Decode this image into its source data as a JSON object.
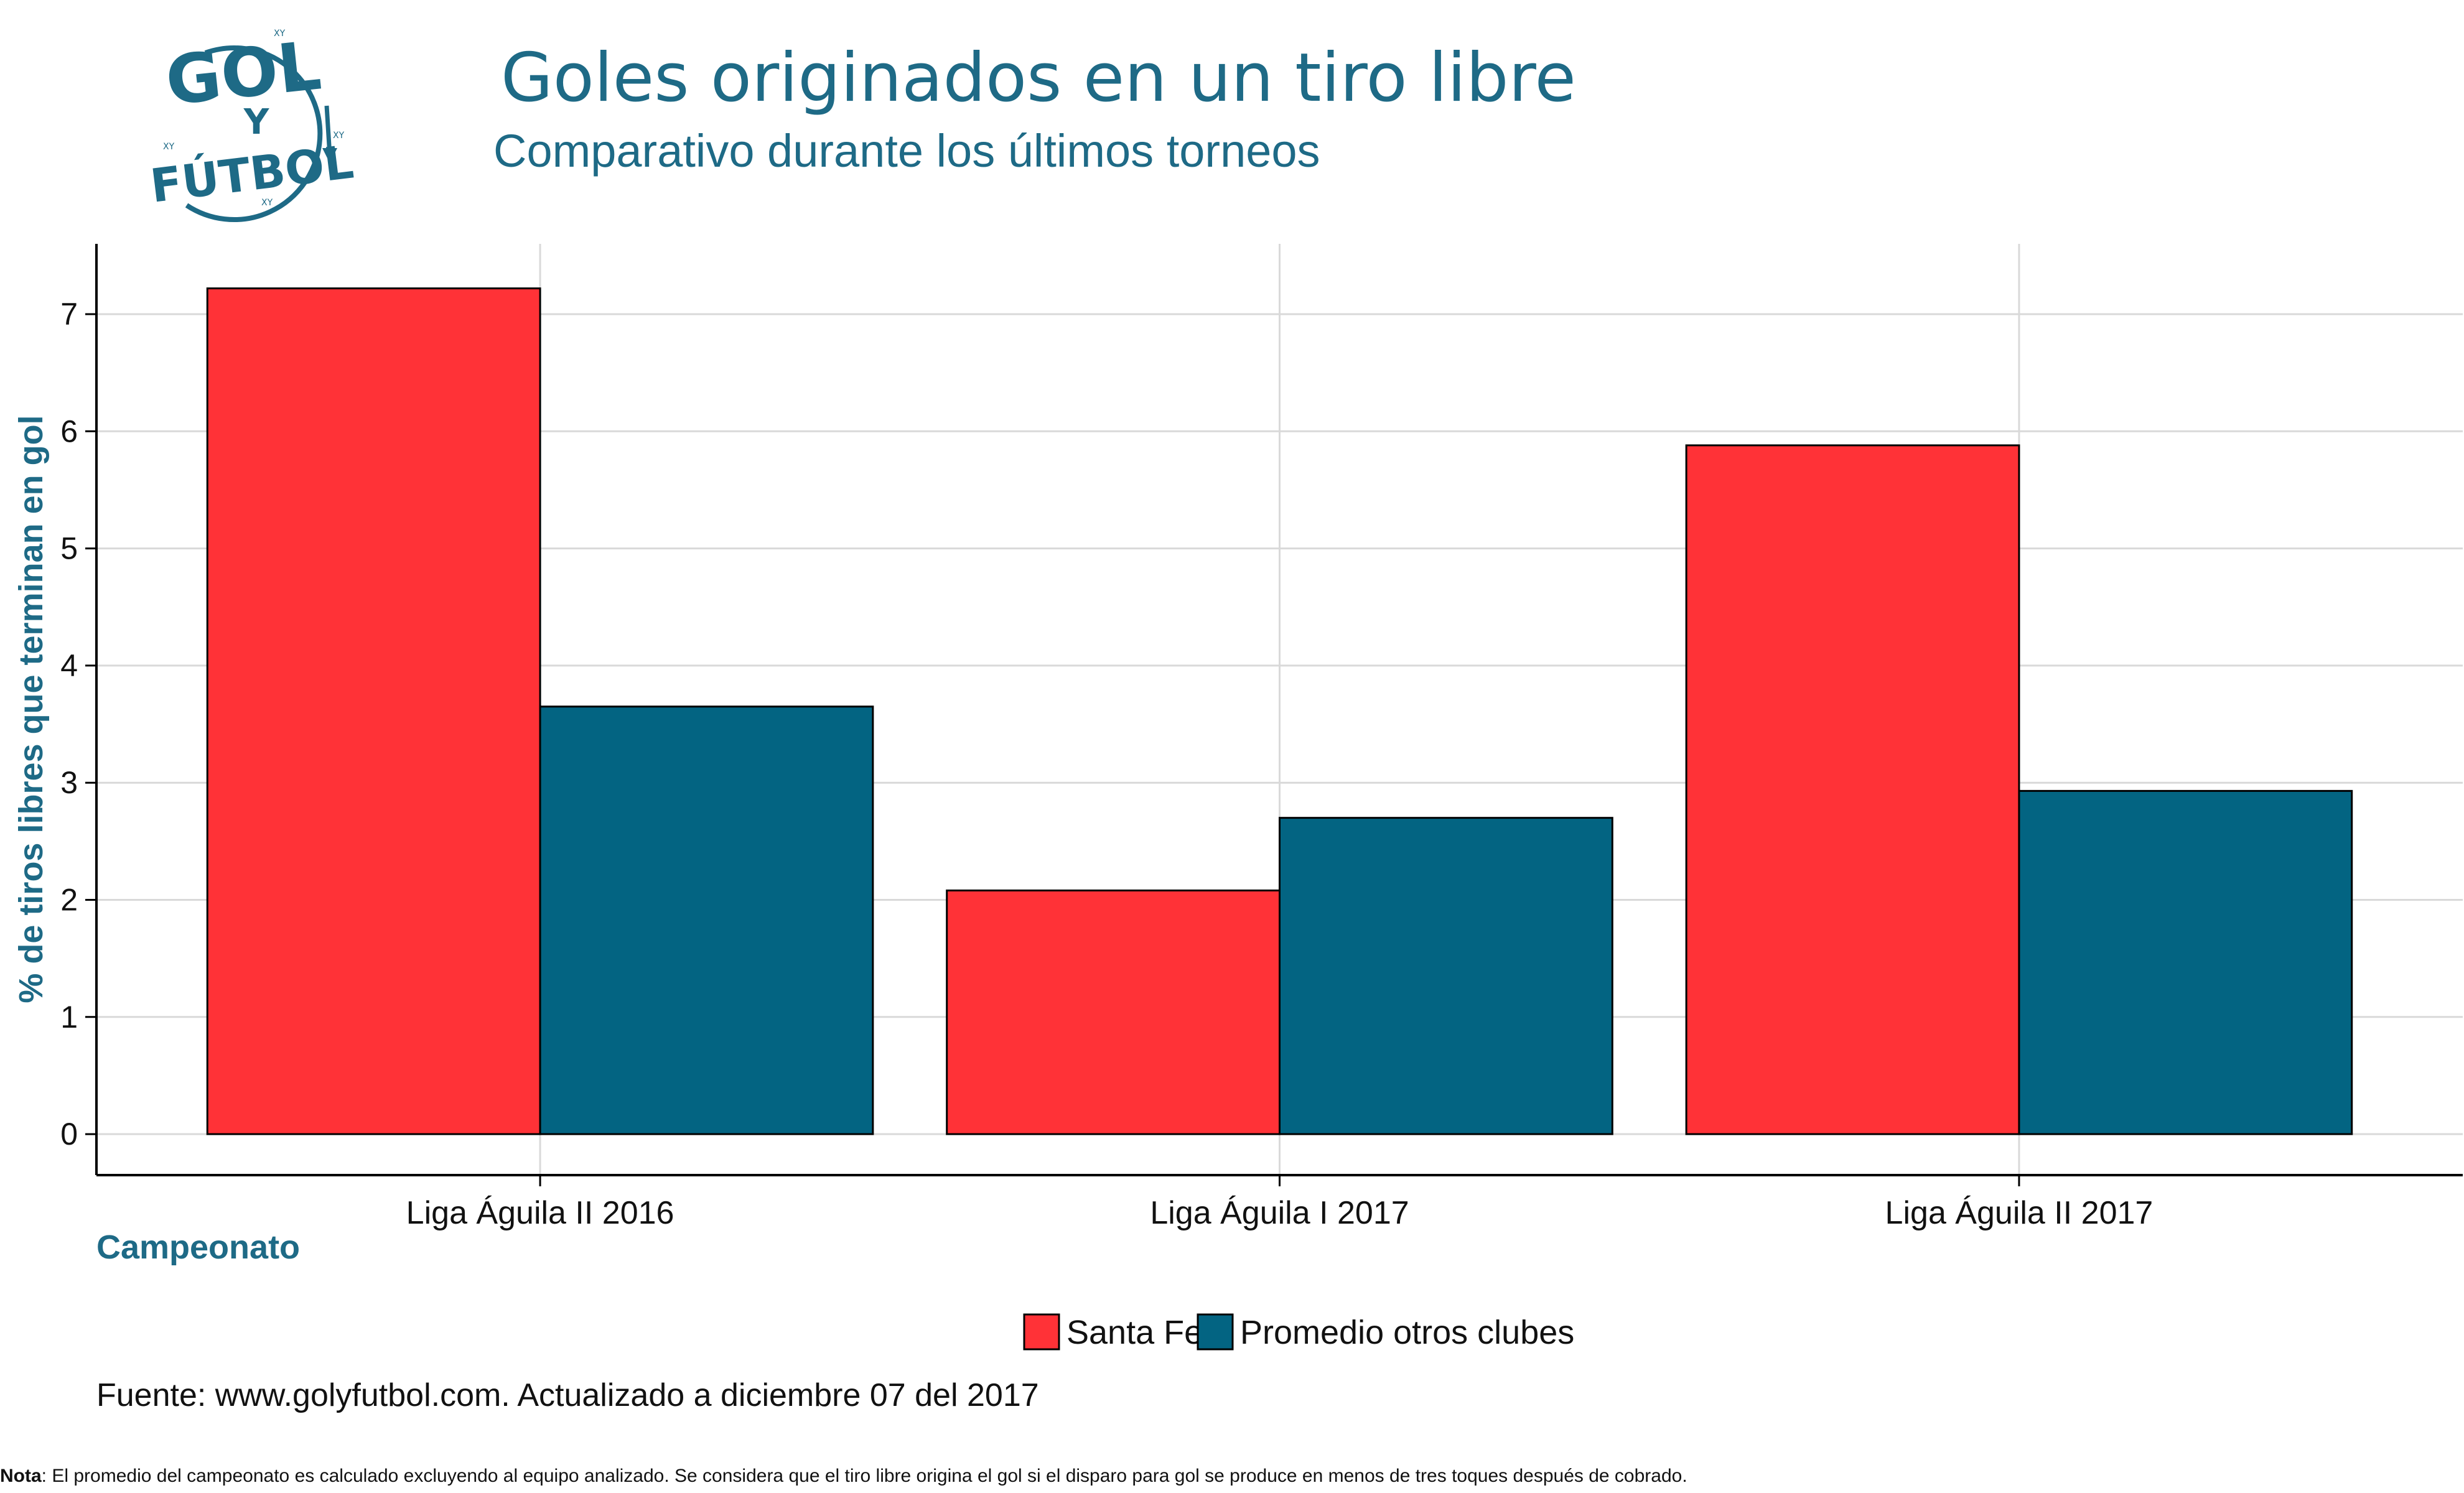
{
  "logo": {
    "line1": "GOL",
    "line2": "Y",
    "line3": "FÚTBOL",
    "mark": "XY",
    "color": "#1e6a86"
  },
  "chart_data": {
    "type": "bar",
    "title": "Goles originados en un tiro libre",
    "subtitle": "Comparativo durante los últimos torneos",
    "xlabel": "Campeonato",
    "ylabel": "% de tiros libres que terminan en gol",
    "categories": [
      "Liga Águila II 2016",
      "Liga Águila I 2017",
      "Liga Águila II 2017"
    ],
    "series": [
      {
        "name": "Santa Fe",
        "color": "#ff3237",
        "values": [
          7.22,
          2.08,
          5.88
        ]
      },
      {
        "name": "Promedio otros clubes",
        "color": "#036482",
        "values": [
          3.65,
          2.7,
          2.93
        ]
      }
    ],
    "ylim": [
      -0.35,
      7.6
    ],
    "yticks": [
      "0",
      "1",
      "2",
      "3",
      "4",
      "5",
      "6",
      "7"
    ],
    "grid": true,
    "legend_position": "bottom"
  },
  "footer": {
    "source": "Fuente: www.golyfutbol.com. Actualizado a diciembre 07 del 2017",
    "note_label": "Nota",
    "note_text": ": El promedio del campeonato es calculado excluyendo al equipo analizado. Se considera que el tiro libre origina el gol si el disparo para gol se produce en menos de tres toques después de cobrado."
  }
}
